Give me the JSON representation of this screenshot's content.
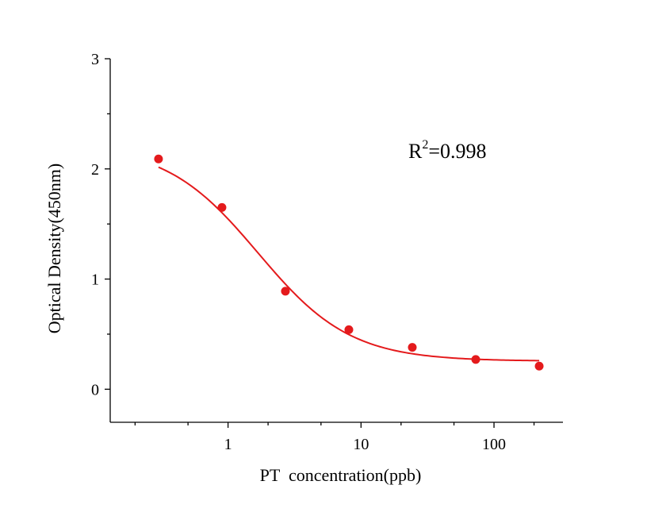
{
  "chart_data": {
    "type": "scatter",
    "xlabel": "PT  concentration(ppb)",
    "ylabel": "Optical Density(450nm)",
    "x_scale": "log",
    "xlim": [
      0.13,
      330
    ],
    "ylim": [
      -0.3,
      3
    ],
    "x_ticks": [
      1,
      10,
      100
    ],
    "x_tick_labels": [
      "1",
      "10",
      "100"
    ],
    "y_ticks": [
      0,
      1,
      2,
      3
    ],
    "y_tick_labels": [
      "0",
      "1",
      "2",
      "3"
    ],
    "grid": false,
    "legend": "none",
    "annotation": {
      "base": "R",
      "sup": "2",
      "rest": "=0.998"
    },
    "series": [
      {
        "color": "#e41a1c",
        "points": [
          {
            "x": 0.3,
            "y": 2.09
          },
          {
            "x": 0.9,
            "y": 1.65
          },
          {
            "x": 2.7,
            "y": 0.89
          },
          {
            "x": 8.1,
            "y": 0.54
          },
          {
            "x": 24.3,
            "y": 0.38
          },
          {
            "x": 72.9,
            "y": 0.27
          },
          {
            "x": 218.7,
            "y": 0.21
          }
        ],
        "fit": {
          "model": "4PL",
          "top": 2.22,
          "bottom": 0.255,
          "ec50": 1.68,
          "hill": 1.25,
          "x_range": [
            0.3,
            218.7
          ]
        }
      }
    ]
  }
}
